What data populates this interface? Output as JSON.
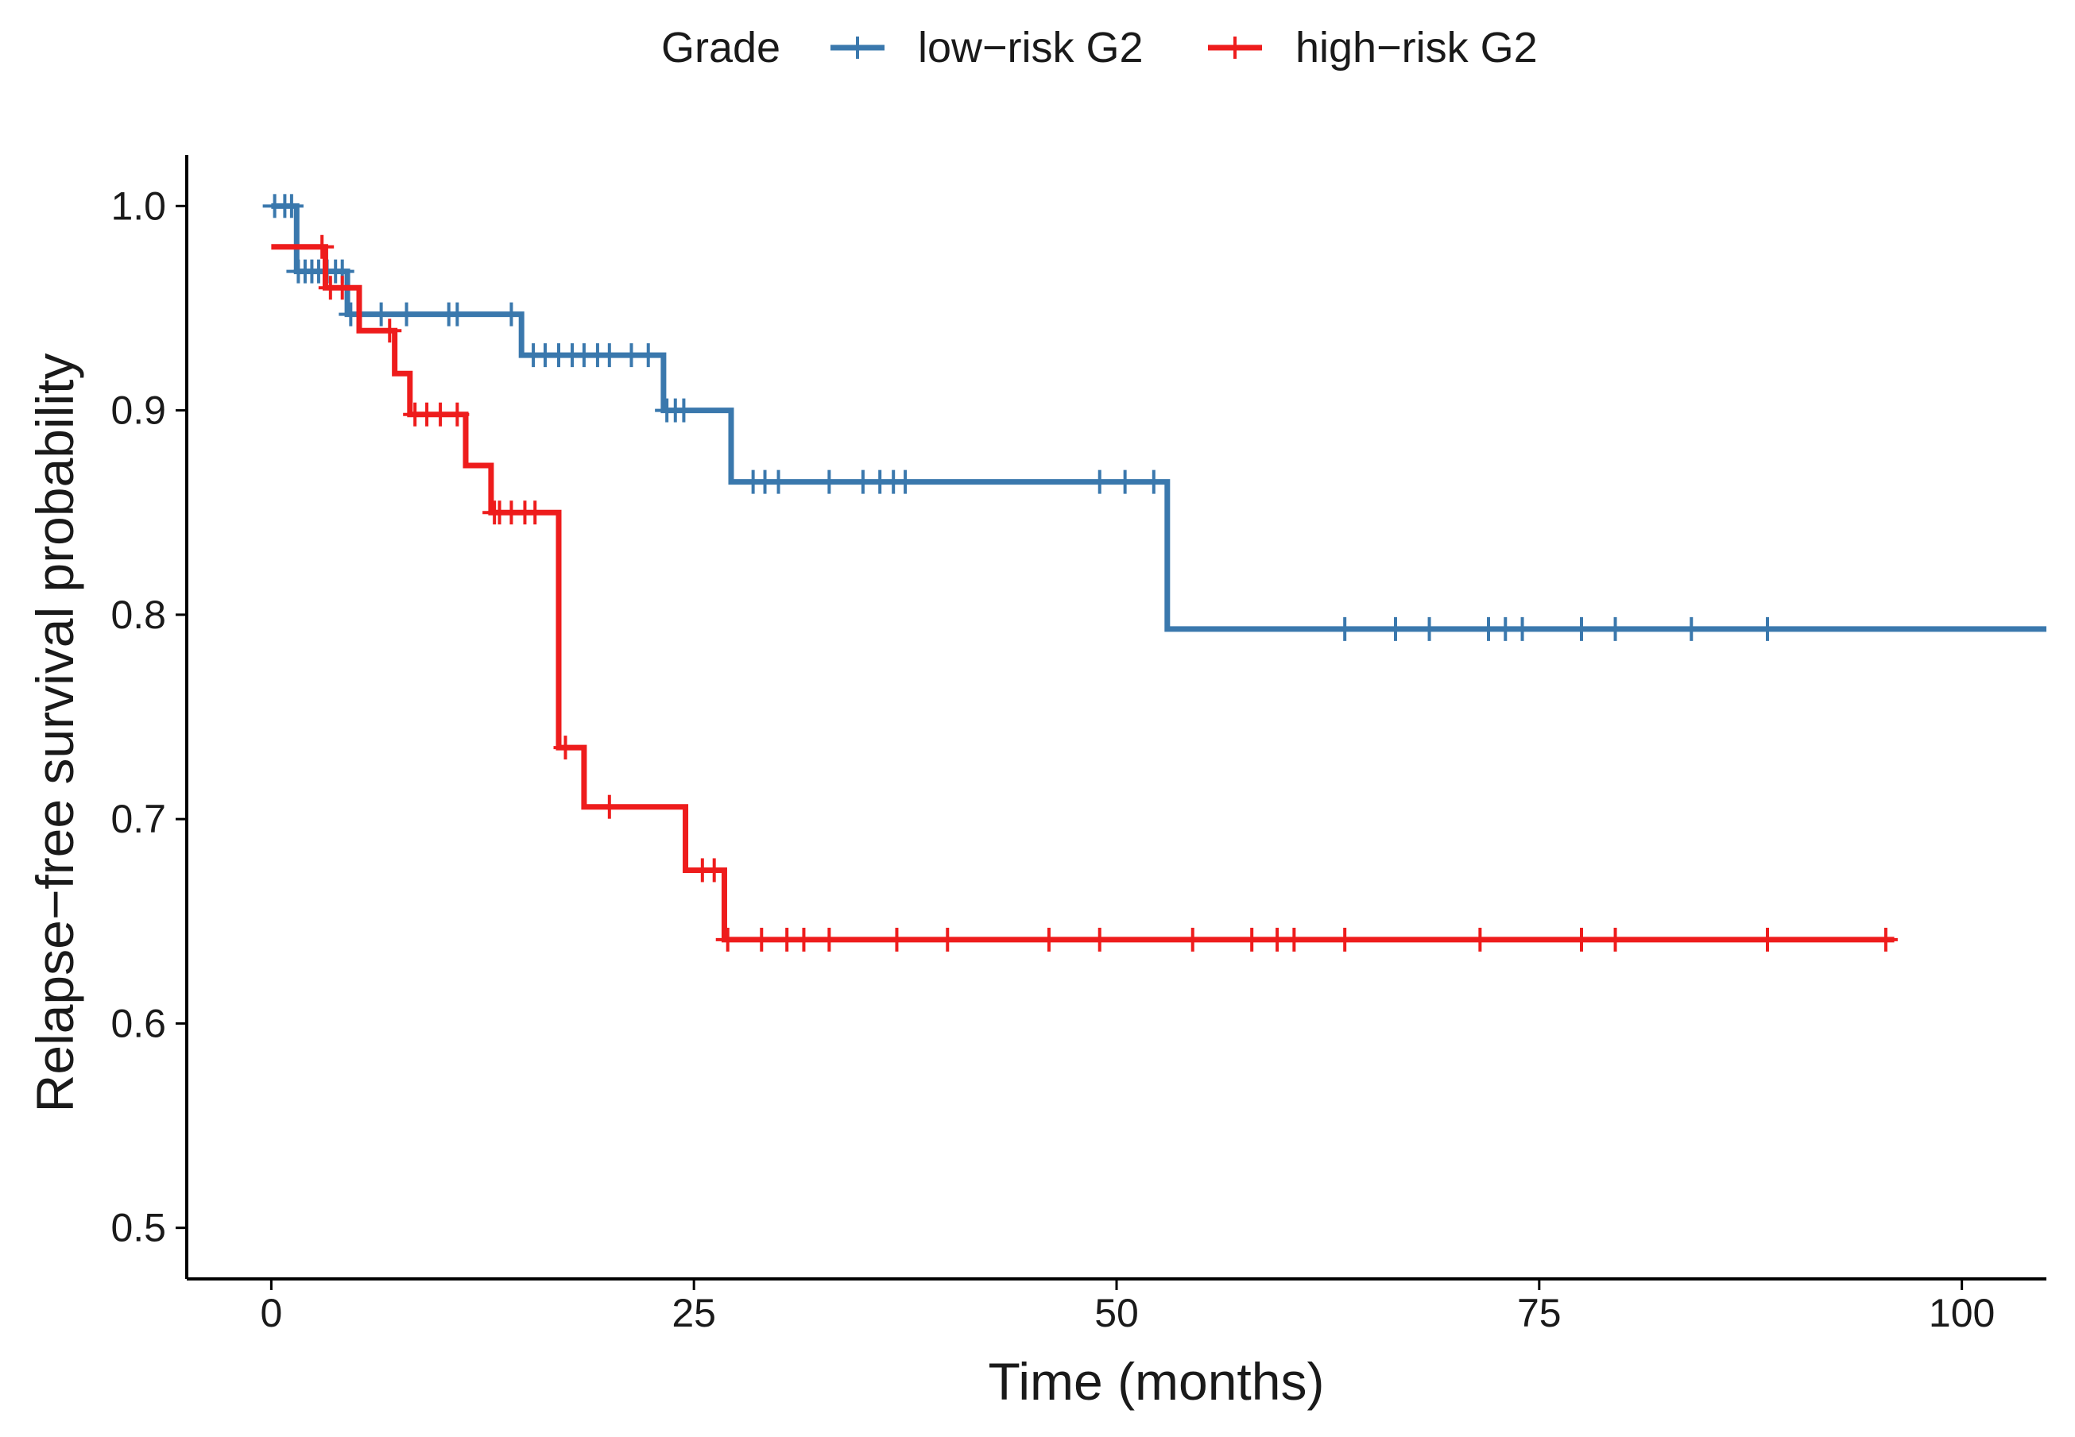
{
  "chart_data": {
    "type": "line",
    "xlabel": "Time (months)",
    "ylabel": "Relapse−free survival probability",
    "xlim": [
      -5,
      105
    ],
    "ylim": [
      0.475,
      1.025
    ],
    "xticks": [
      0,
      25,
      50,
      75,
      100
    ],
    "xtick_labels": [
      "0",
      "25",
      "50",
      "75",
      "100"
    ],
    "yticks": [
      0.5,
      0.6,
      0.7,
      0.8,
      0.9,
      1.0
    ],
    "ytick_labels": [
      "0.5",
      "0.6",
      "0.7",
      "0.8",
      "0.9",
      "1.0"
    ],
    "grid": false,
    "legend": {
      "title": "Grade",
      "position": "top"
    },
    "series": [
      {
        "name": "low−risk G2",
        "color": "#3a78ad",
        "steps": [
          [
            0,
            1.0
          ],
          [
            1.5,
            0.968
          ],
          [
            4.5,
            0.947
          ],
          [
            14.8,
            0.927
          ],
          [
            23.2,
            0.9
          ],
          [
            27.2,
            0.865
          ],
          [
            53.0,
            0.793
          ],
          [
            105,
            0.793
          ]
        ],
        "censor_times": [
          0.2,
          0.8,
          1.2,
          1.6,
          2.0,
          2.4,
          2.8,
          3.3,
          3.8,
          4.2,
          4.7,
          5.2,
          6.5,
          8.0,
          10.5,
          11.0,
          14.2,
          15.5,
          16.2,
          17.0,
          17.8,
          18.5,
          19.3,
          20.0,
          21.3,
          22.3,
          23.4,
          23.9,
          24.4,
          28.5,
          29.2,
          30.0,
          33.0,
          35.0,
          36.0,
          36.8,
          37.5,
          49.0,
          50.5,
          52.2,
          63.5,
          66.5,
          68.5,
          72.0,
          73.0,
          74.0,
          77.5,
          79.5,
          84.0,
          88.5
        ]
      },
      {
        "name": "high−risk G2",
        "color": "#ee1c1c",
        "steps": [
          [
            0,
            0.98
          ],
          [
            3.2,
            0.96
          ],
          [
            5.2,
            0.939
          ],
          [
            7.3,
            0.918
          ],
          [
            8.2,
            0.898
          ],
          [
            11.5,
            0.873
          ],
          [
            13.0,
            0.85
          ],
          [
            17.0,
            0.735
          ],
          [
            18.5,
            0.706
          ],
          [
            24.5,
            0.675
          ],
          [
            26.8,
            0.641
          ],
          [
            96,
            0.641
          ]
        ],
        "censor_times": [
          3.0,
          3.5,
          4.2,
          7.0,
          8.5,
          9.2,
          10.0,
          11.0,
          13.2,
          13.5,
          14.2,
          15.0,
          15.6,
          17.4,
          20.0,
          25.5,
          26.2,
          27.0,
          29.0,
          30.5,
          31.5,
          33.0,
          37.0,
          40.0,
          46.0,
          49.0,
          54.5,
          58.0,
          59.5,
          60.5,
          63.5,
          71.5,
          77.5,
          79.5,
          88.5,
          95.5
        ]
      }
    ]
  }
}
